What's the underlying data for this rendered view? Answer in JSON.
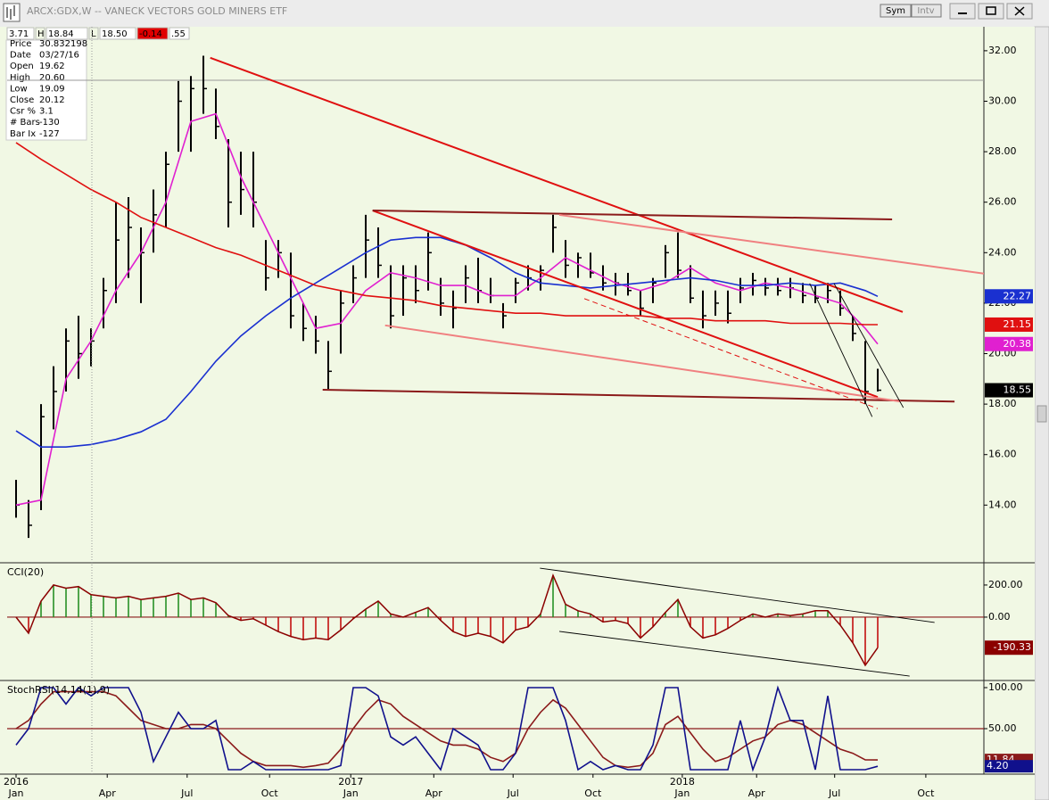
{
  "window": {
    "title": "ARCX:GDX,W -- VANECK VECTORS GOLD MINERS ETF",
    "buttons": [
      "Sym",
      "Intv"
    ],
    "header_fields": [
      "3.71",
      "H",
      "18.84",
      "L",
      "18.50",
      "-0.14",
      ".55"
    ]
  },
  "info_panel": {
    "rows": [
      [
        "Price",
        "30.832198"
      ],
      [
        "Date",
        "03/27/16"
      ],
      [
        "Open",
        "19.62"
      ],
      [
        "High",
        "20.60"
      ],
      [
        "Low",
        "19.09"
      ],
      [
        "Close",
        "20.12"
      ],
      [
        "Csr %",
        "3.1"
      ],
      [
        "# Bars",
        "-130"
      ],
      [
        "Bar Ix",
        "-127"
      ]
    ]
  },
  "chart_data": [
    {
      "type": "ohlc",
      "color": "#000000",
      "tag_color": "#000000",
      "xlim": [
        -1.43,
        155
      ],
      "ylim": [
        11.75,
        32.95
      ],
      "yticks": [
        {
          "value": 14,
          "label": "14.00"
        },
        {
          "value": 16,
          "label": "16.00"
        },
        {
          "value": 18,
          "label": "18.00"
        },
        {
          "value": 20,
          "label": "20.00"
        },
        {
          "value": 22,
          "label": "22.00"
        },
        {
          "value": 24,
          "label": "24.00"
        },
        {
          "value": 26,
          "label": "26.00"
        },
        {
          "value": 28,
          "label": "28.00"
        },
        {
          "value": 30,
          "label": "30.00"
        },
        {
          "value": 32,
          "label": "32.00"
        }
      ],
      "x": [
        0,
        2,
        4,
        6,
        8,
        10,
        12,
        14,
        16,
        18,
        20,
        22,
        24,
        26,
        28,
        30,
        32,
        34,
        36,
        38,
        40,
        42,
        44,
        46,
        48,
        50,
        52,
        54,
        56,
        58,
        60,
        62,
        64,
        66,
        68,
        70,
        72,
        74,
        76,
        78,
        80,
        82,
        84,
        86,
        88,
        90,
        92,
        94,
        96,
        98,
        100,
        102,
        104,
        106,
        108,
        110,
        112,
        114,
        116,
        118,
        120,
        122,
        124,
        126,
        128,
        130,
        132,
        134,
        136,
        138
      ],
      "high": [
        15,
        14.2,
        18,
        19.5,
        21,
        21.5,
        21,
        23,
        26,
        26.2,
        25,
        26.5,
        28,
        30.8,
        31,
        31.8,
        30.5,
        28.5,
        28,
        28,
        24.5,
        24.5,
        24,
        22,
        21.5,
        20.5,
        22.5,
        23.5,
        25.5,
        25,
        23.5,
        23.5,
        23.5,
        24.8,
        23,
        22.5,
        23.5,
        23.8,
        23,
        22,
        23,
        23.5,
        23.5,
        25.5,
        24.5,
        24,
        24,
        23.5,
        23.2,
        23.2,
        22.5,
        23,
        24.3,
        24.8,
        23.5,
        22.5,
        22.5,
        22.5,
        23,
        23.2,
        23,
        23,
        23,
        22.8,
        22.7,
        22.8,
        22.5,
        21.5,
        20.5,
        19.4
      ],
      "low": [
        13.5,
        12.7,
        13.8,
        17,
        18.5,
        19,
        19.5,
        21,
        22,
        23,
        22,
        24,
        25,
        28,
        28,
        29.5,
        28.5,
        25,
        25.5,
        25,
        22.5,
        23,
        21,
        20.5,
        20,
        18.6,
        20,
        22,
        23,
        23,
        21,
        21.5,
        22,
        22.5,
        21.5,
        21,
        22,
        22,
        22,
        21,
        22,
        22.5,
        22.5,
        24,
        23,
        23,
        23,
        22.5,
        22.3,
        22.3,
        21.5,
        22,
        23,
        23,
        22,
        21,
        21.5,
        21.2,
        22,
        22.3,
        22.3,
        22.3,
        22.2,
        22,
        22,
        22,
        21.5,
        20.5,
        18,
        18.5
      ],
      "close": [
        14,
        13.2,
        17.5,
        18.5,
        20.5,
        20,
        20.5,
        22.5,
        24.5,
        25,
        24,
        25.5,
        27.5,
        30,
        30.5,
        30.5,
        29,
        26,
        26.5,
        26,
        23,
        24,
        21.5,
        21,
        20.5,
        19.3,
        22,
        23,
        24.5,
        23.5,
        21.5,
        23,
        22.5,
        24,
        22,
        21.8,
        23,
        22.5,
        22.3,
        21.5,
        22.8,
        23,
        23.3,
        25,
        23.5,
        23.8,
        23.2,
        22.8,
        22.8,
        22.5,
        21.8,
        22.8,
        24,
        23.3,
        22.2,
        21.5,
        22,
        21.6,
        22.6,
        22.9,
        22.6,
        22.5,
        22.6,
        22.3,
        22.2,
        22.5,
        21.8,
        20.8,
        18.5,
        18.55
      ],
      "series": [
        {
          "color": "#e020d0",
          "x": [
            0,
            4,
            8,
            12,
            16,
            20,
            24,
            28,
            32,
            36,
            40,
            44,
            48,
            52,
            56,
            60,
            64,
            68,
            72,
            76,
            80,
            84,
            88,
            92,
            96,
            100,
            104,
            108,
            112,
            116,
            120,
            124,
            128,
            132,
            136,
            138
          ],
          "values": [
            14,
            14.2,
            19,
            20.5,
            22.5,
            24,
            26,
            29.2,
            29.5,
            27,
            25,
            23,
            21,
            21.2,
            22.5,
            23.2,
            23,
            22.7,
            22.7,
            22.3,
            22.3,
            23,
            23.8,
            23.3,
            22.8,
            22.5,
            22.8,
            23.4,
            22.8,
            22.5,
            22.8,
            22.6,
            22.3,
            22,
            21,
            20.38
          ]
        },
        {
          "color": "#1a30d0",
          "x": [
            0,
            4,
            8,
            12,
            16,
            20,
            24,
            28,
            32,
            36,
            40,
            44,
            48,
            52,
            56,
            60,
            64,
            68,
            72,
            76,
            80,
            84,
            88,
            92,
            96,
            100,
            104,
            108,
            112,
            116,
            120,
            124,
            128,
            132,
            136,
            138
          ],
          "values": [
            16.94,
            16.3,
            16.3,
            16.4,
            16.6,
            16.9,
            17.4,
            18.5,
            19.7,
            20.7,
            21.5,
            22.2,
            22.8,
            23.4,
            24.0,
            24.5,
            24.6,
            24.6,
            24.3,
            23.8,
            23.2,
            22.8,
            22.7,
            22.6,
            22.7,
            22.8,
            22.9,
            23.0,
            22.9,
            22.7,
            22.7,
            22.8,
            22.7,
            22.8,
            22.5,
            22.27
          ]
        },
        {
          "color": "#e01010",
          "x": [
            0,
            4,
            8,
            12,
            16,
            20,
            24,
            28,
            32,
            36,
            40,
            44,
            48,
            52,
            56,
            60,
            64,
            68,
            72,
            76,
            80,
            84,
            88,
            92,
            96,
            100,
            104,
            108,
            112,
            116,
            120,
            124,
            128,
            132,
            136,
            138
          ],
          "values": [
            28.36,
            27.7,
            27.1,
            26.5,
            26.0,
            25.4,
            25.0,
            24.6,
            24.2,
            23.9,
            23.5,
            23.1,
            22.7,
            22.5,
            22.3,
            22.2,
            22.1,
            21.9,
            21.8,
            21.7,
            21.6,
            21.6,
            21.5,
            21.5,
            21.5,
            21.5,
            21.4,
            21.4,
            21.3,
            21.3,
            21.3,
            21.2,
            21.2,
            21.2,
            21.15,
            21.15
          ]
        }
      ],
      "trendlines": [
        {
          "x": [
            31.1,
            142
          ],
          "y": [
            31.72,
            21.65
          ],
          "color": "#e01010"
        },
        {
          "x": [
            57.1,
            138
          ],
          "y": [
            25.67,
            18.28
          ],
          "color": "#e01010"
        },
        {
          "x": [
            57.1,
            140.3
          ],
          "y": [
            25.67,
            25.32
          ],
          "color": "#8b1a1a"
        },
        {
          "x": [
            49.1,
            150.3
          ],
          "y": [
            18.57,
            18.1
          ],
          "color": "#8b1a1a"
        },
        {
          "x": [
            87,
            155
          ],
          "y": [
            25.5,
            23.17
          ],
          "color": "#f08080"
        },
        {
          "x": [
            59.1,
            141.7
          ],
          "y": [
            21.12,
            18.1
          ],
          "color": "#f08080"
        },
        {
          "x": [
            91,
            138
          ],
          "y": [
            22.18,
            17.82
          ],
          "color": "#e01010",
          "dashed": true
        },
        {
          "x": [
            127.1,
            137.1
          ],
          "y": [
            22.78,
            17.5
          ],
          "color": "#000000"
        },
        {
          "x": [
            131,
            142.1
          ],
          "y": [
            22.78,
            17.86
          ],
          "color": "#000000"
        }
      ],
      "crosshair": {
        "x": 12.14,
        "y": 30.832198
      }
    },
    {
      "type": "histogram",
      "title": "CCI(20)",
      "pos_color": "#1a8a1a",
      "neg_color": "#c00000",
      "line_color": "#8b0000",
      "tag_color": "#8b0000",
      "xlim": [
        -1.43,
        155
      ],
      "ylim": [
        -389,
        333
      ],
      "yticks": [
        {
          "value": 200,
          "label": "200.00"
        },
        {
          "value": 0,
          "label": "0.00"
        }
      ],
      "hlines": [
        {
          "value": 0,
          "color": "#8b1a1a"
        }
      ],
      "x": [
        0,
        2,
        4,
        6,
        8,
        10,
        12,
        14,
        16,
        18,
        20,
        22,
        24,
        26,
        28,
        30,
        32,
        34,
        36,
        38,
        40,
        42,
        44,
        46,
        48,
        50,
        52,
        54,
        56,
        58,
        60,
        62,
        64,
        66,
        68,
        70,
        72,
        74,
        76,
        78,
        80,
        82,
        84,
        86,
        88,
        90,
        92,
        94,
        96,
        98,
        100,
        102,
        104,
        106,
        108,
        110,
        112,
        114,
        116,
        118,
        120,
        122,
        124,
        126,
        128,
        130,
        132,
        134,
        136,
        138
      ],
      "values": [
        0,
        -100,
        100,
        200,
        180,
        190,
        140,
        130,
        120,
        130,
        110,
        120,
        130,
        150,
        110,
        120,
        90,
        10,
        -20,
        -10,
        -50,
        -90,
        -120,
        -140,
        -130,
        -140,
        -80,
        -10,
        50,
        100,
        20,
        0,
        30,
        60,
        -20,
        -90,
        -120,
        -100,
        -120,
        -160,
        -80,
        -60,
        20,
        260,
        80,
        40,
        20,
        -30,
        -20,
        -40,
        -130,
        -60,
        30,
        110,
        -60,
        -130,
        -110,
        -70,
        -20,
        20,
        0,
        20,
        10,
        20,
        40,
        40,
        -50,
        -160,
        -300,
        -190.33
      ],
      "trendlines": [
        {
          "x": [
            83.9,
            147.1
          ],
          "y": [
            305,
            -33
          ],
          "color": "#000000"
        },
        {
          "x": [
            87,
            143.1
          ],
          "y": [
            -89,
            -367
          ],
          "color": "#000000"
        }
      ]
    },
    {
      "type": "line",
      "title": "StochRSI(14,14(1),9)",
      "xlim": [
        -1.43,
        155
      ],
      "ylim": [
        -5.4,
        107.6
      ],
      "yticks": [
        {
          "value": 100,
          "label": "100.00"
        },
        {
          "value": 50,
          "label": "50.00"
        }
      ],
      "hlines": [
        {
          "value": 50,
          "color": "#8b1a1a"
        }
      ],
      "xticks": [
        {
          "value": 0,
          "label": "Jan",
          "year": "2016"
        },
        {
          "value": 14.6,
          "label": "Apr"
        },
        {
          "value": 27.4,
          "label": "Jul"
        },
        {
          "value": 40.6,
          "label": "Oct"
        },
        {
          "value": 53.6,
          "label": "Jan",
          "year": "2017"
        },
        {
          "value": 66.9,
          "label": "Apr"
        },
        {
          "value": 79.6,
          "label": "Jul"
        },
        {
          "value": 92.4,
          "label": "Oct"
        },
        {
          "value": 106.7,
          "label": "Jan",
          "year": "2018"
        },
        {
          "value": 118.6,
          "label": "Apr"
        },
        {
          "value": 131.1,
          "label": "Jul"
        },
        {
          "value": 145.7,
          "label": "Oct"
        }
      ],
      "x": [
        0,
        2,
        4,
        6,
        8,
        10,
        12,
        14,
        16,
        18,
        20,
        22,
        24,
        26,
        28,
        30,
        32,
        34,
        36,
        38,
        40,
        42,
        44,
        46,
        48,
        50,
        52,
        54,
        56,
        58,
        60,
        62,
        64,
        66,
        68,
        70,
        72,
        74,
        76,
        78,
        80,
        82,
        84,
        86,
        88,
        90,
        92,
        94,
        96,
        98,
        100,
        102,
        104,
        106,
        108,
        110,
        112,
        114,
        116,
        118,
        120,
        122,
        124,
        126,
        128,
        130,
        132,
        134,
        136,
        138
      ],
      "series": [
        {
          "color": "#8b1a1a",
          "values": [
            50,
            60,
            80,
            95,
            95,
            95,
            95,
            95,
            90,
            75,
            60,
            55,
            50,
            50,
            55,
            55,
            50,
            35,
            20,
            10,
            5,
            5,
            5,
            3,
            5,
            8,
            25,
            50,
            70,
            85,
            80,
            65,
            55,
            45,
            35,
            30,
            30,
            25,
            15,
            10,
            20,
            50,
            70,
            85,
            75,
            55,
            35,
            15,
            5,
            3,
            5,
            20,
            55,
            65,
            45,
            25,
            10,
            15,
            25,
            35,
            40,
            55,
            60,
            55,
            45,
            35,
            25,
            20,
            12,
            11.84
          ]
        },
        {
          "color": "#10108c",
          "values": [
            30,
            50,
            100,
            100,
            80,
            100,
            90,
            100,
            100,
            100,
            70,
            10,
            40,
            70,
            50,
            50,
            60,
            0,
            0,
            10,
            0,
            0,
            0,
            0,
            0,
            0,
            5,
            100,
            100,
            90,
            40,
            30,
            40,
            20,
            0,
            50,
            40,
            30,
            0,
            0,
            20,
            100,
            100,
            100,
            60,
            0,
            10,
            0,
            5,
            0,
            0,
            30,
            100,
            100,
            0,
            0,
            0,
            0,
            60,
            0,
            40,
            100,
            60,
            60,
            0,
            90,
            0,
            0,
            0,
            4.2
          ]
        }
      ],
      "tags": [
        {
          "value": 11.84,
          "label": "11.84",
          "color": "#8b1a1a"
        },
        {
          "value": 4.2,
          "label": "4.20",
          "color": "#10108c"
        }
      ]
    }
  ]
}
